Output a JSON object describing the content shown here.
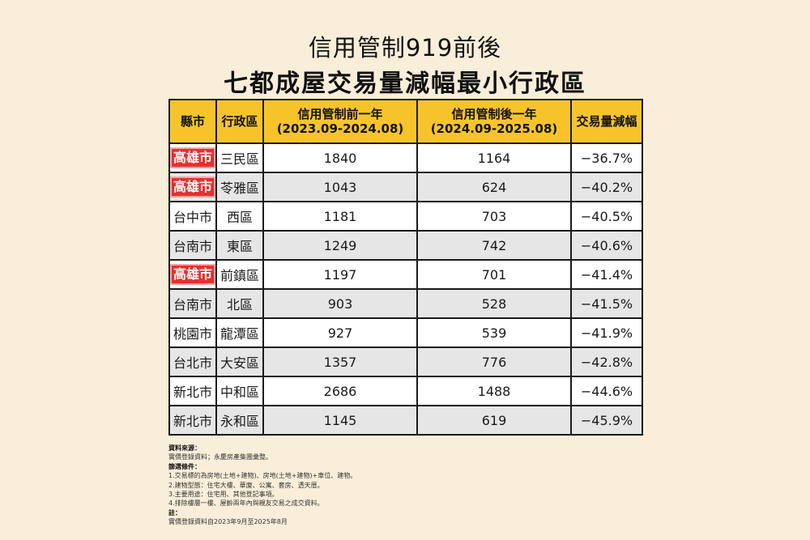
{
  "title": {
    "line1": "信用管制919前後",
    "line2": "七都成屋交易量減幅最小行政區"
  },
  "table": {
    "headers": {
      "city": "縣市",
      "district": "行政區",
      "before_l1": "信用管制前一年",
      "before_l2": "(2023.09-2024.08)",
      "after_l1": "信用管制後一年",
      "after_l2": "(2024.09-2025.08)",
      "change": "交易量減幅"
    },
    "highlight_color": "#ea2e2e",
    "header_color": "#f6c42a",
    "rows": [
      {
        "city": "高雄市",
        "district": "三民區",
        "before": "1840",
        "after": "1164",
        "change": "−36.7%",
        "highlight": true
      },
      {
        "city": "高雄市",
        "district": "苓雅區",
        "before": "1043",
        "after": "624",
        "change": "−40.2%",
        "highlight": true
      },
      {
        "city": "台中市",
        "district": "西區",
        "before": "1181",
        "after": "703",
        "change": "−40.5%",
        "highlight": false
      },
      {
        "city": "台南市",
        "district": "東區",
        "before": "1249",
        "after": "742",
        "change": "−40.6%",
        "highlight": false
      },
      {
        "city": "高雄市",
        "district": "前鎮區",
        "before": "1197",
        "after": "701",
        "change": "−41.4%",
        "highlight": true
      },
      {
        "city": "台南市",
        "district": "北區",
        "before": "903",
        "after": "528",
        "change": "−41.5%",
        "highlight": false
      },
      {
        "city": "桃園市",
        "district": "龍潭區",
        "before": "927",
        "after": "539",
        "change": "−41.9%",
        "highlight": false
      },
      {
        "city": "台北市",
        "district": "大安區",
        "before": "1357",
        "after": "776",
        "change": "−42.8%",
        "highlight": false
      },
      {
        "city": "新北市",
        "district": "中和區",
        "before": "2686",
        "after": "1488",
        "change": "−44.6%",
        "highlight": false
      },
      {
        "city": "新北市",
        "district": "永和區",
        "before": "1145",
        "after": "619",
        "change": "−45.9%",
        "highlight": false
      }
    ]
  },
  "notes": {
    "source_label": "資料來源：",
    "source_text": "實價登錄資料；永慶房產集團彙整。",
    "filter_label": "篩選條件：",
    "filter_1": "1.交易標的為房地(土地+建物)、房地(土地+建物)+車位、建物。",
    "filter_2": "2.建物型態：住宅大樓、華廈、公寓、套房、透天厝。",
    "filter_3": "3.主要用途：住宅用、其他登記事項。",
    "filter_4": "4.排除樓層一樓、屋齡兩年內與親友交易之成交資料。",
    "note_label": "註：",
    "note_text": "實價登錄資料自2023年9月至2025年8月"
  }
}
